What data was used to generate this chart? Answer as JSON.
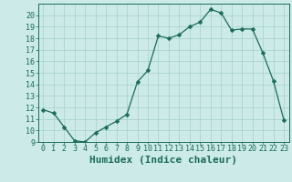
{
  "x": [
    0,
    1,
    2,
    3,
    4,
    5,
    6,
    7,
    8,
    9,
    10,
    11,
    12,
    13,
    14,
    15,
    16,
    17,
    18,
    19,
    20,
    21,
    22,
    23
  ],
  "y": [
    11.8,
    11.5,
    10.3,
    9.1,
    9.0,
    9.8,
    10.3,
    10.8,
    11.4,
    14.2,
    15.2,
    18.2,
    18.0,
    18.3,
    19.0,
    19.4,
    20.5,
    20.2,
    18.7,
    18.8,
    18.8,
    16.7,
    14.3,
    10.9
  ],
  "line_color": "#1a6b5a",
  "marker": "D",
  "marker_size": 2.5,
  "bg_color": "#cceae8",
  "grid_color": "#aad4d1",
  "xlabel": "Humidex (Indice chaleur)",
  "xlim": [
    -0.5,
    23.5
  ],
  "ylim": [
    9,
    21
  ],
  "yticks": [
    9,
    10,
    11,
    12,
    13,
    14,
    15,
    16,
    17,
    18,
    19,
    20
  ],
  "xticks": [
    0,
    1,
    2,
    3,
    4,
    5,
    6,
    7,
    8,
    9,
    10,
    11,
    12,
    13,
    14,
    15,
    16,
    17,
    18,
    19,
    20,
    21,
    22,
    23
  ],
  "tick_color": "#1a6b5a",
  "tick_fontsize": 6.0,
  "xlabel_fontsize": 8.0
}
